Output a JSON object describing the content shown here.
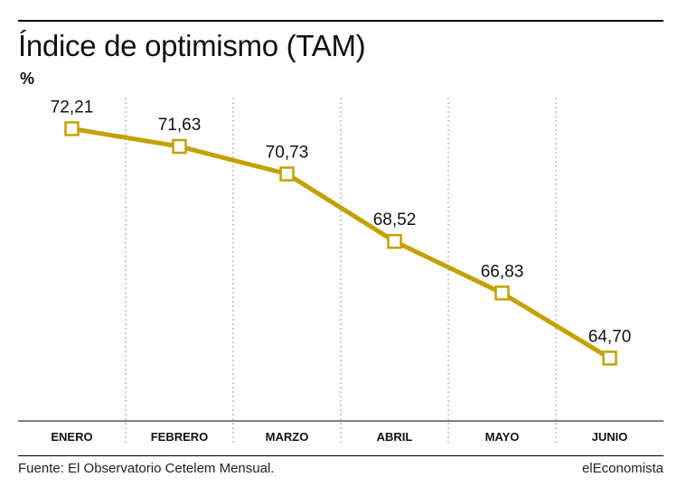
{
  "title": "Índice de optimismo (TAM)",
  "unit": "%",
  "source": "Fuente: El Observatorio Cetelem Mensual.",
  "brand": "elEconomista",
  "colors": {
    "line": "#c4a000",
    "marker_fill": "#ffffff",
    "grid": "#999999",
    "axis": "#000000"
  },
  "chart_data": {
    "type": "line",
    "categories": [
      "ENERO",
      "FEBRERO",
      "MARZO",
      "ABRIL",
      "MAYO",
      "JUNIO"
    ],
    "values": [
      72.21,
      71.63,
      70.73,
      68.52,
      66.83,
      64.7
    ],
    "data_labels": [
      "72,21",
      "71,63",
      "70,73",
      "68,52",
      "66,83",
      "64,70"
    ],
    "ylabel": "%",
    "ylim": [
      62.64,
      73.23
    ],
    "grid": "vertical dotted separators",
    "legend": "none"
  }
}
